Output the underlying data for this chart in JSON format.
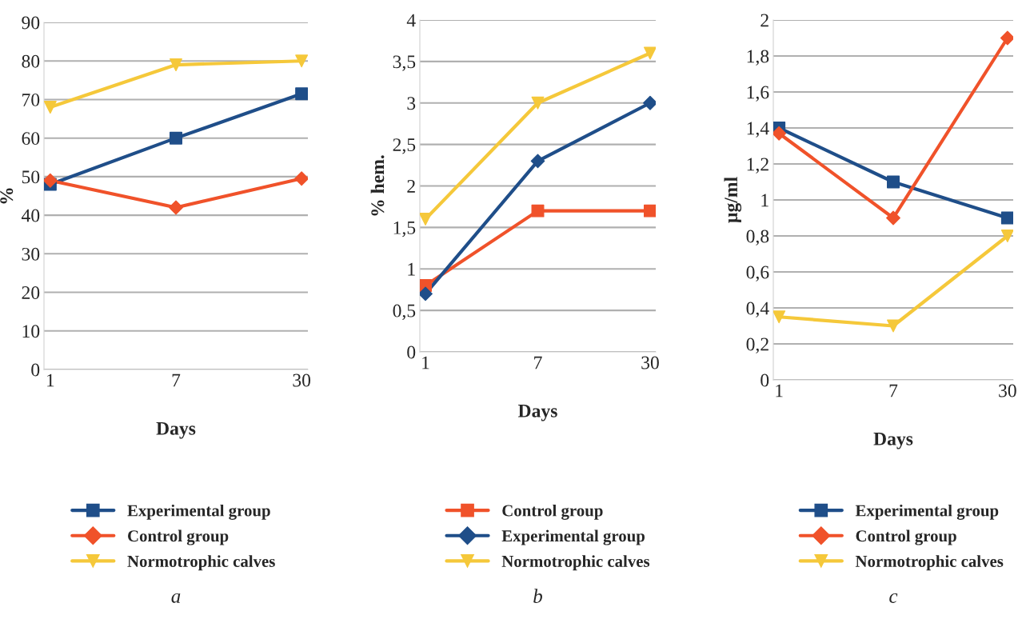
{
  "chart_data": [
    {
      "type": "line",
      "categories": [
        "1",
        "7",
        "30"
      ],
      "xlabel": "Days",
      "ylabel": "%",
      "ylim": [
        0,
        90
      ],
      "yticks": [
        0,
        10,
        20,
        30,
        40,
        50,
        60,
        70,
        80,
        90
      ],
      "grid": "y",
      "legend": "bottom",
      "annotations": [
        "a"
      ],
      "series": [
        {
          "name": "Experimental group",
          "color": "#1f4e89",
          "marker": "square",
          "values": [
            48,
            60,
            71.5
          ]
        },
        {
          "name": "Control group",
          "color": "#f0522a",
          "marker": "diamond",
          "values": [
            49,
            42,
            49.5
          ]
        },
        {
          "name": "Normotrophic calves",
          "color": "#f5c83a",
          "marker": "triangle",
          "values": [
            68,
            79,
            80
          ]
        }
      ]
    },
    {
      "type": "line",
      "categories": [
        "1",
        "7",
        "30"
      ],
      "xlabel": "Days",
      "ylabel": "% hem.",
      "ylim": [
        0,
        4
      ],
      "yticks": [
        0,
        {
          "value": 0.5,
          "label": "0,5"
        },
        1,
        {
          "value": 1.5,
          "label": "1,5"
        },
        2,
        {
          "value": 2.5,
          "label": "2,5"
        },
        3,
        {
          "value": 3.5,
          "label": "3,5"
        },
        4
      ],
      "grid": "y",
      "legend": "bottom",
      "annotations": [
        "b"
      ],
      "series": [
        {
          "name": "Control group",
          "color": "#f0522a",
          "marker": "square",
          "values": [
            0.8,
            1.7,
            1.7
          ]
        },
        {
          "name": "Experimental group",
          "color": "#1f4e89",
          "marker": "diamond",
          "values": [
            0.7,
            2.3,
            3.0
          ]
        },
        {
          "name": "Normotrophic calves",
          "color": "#f5c83a",
          "marker": "triangle",
          "values": [
            1.6,
            3.0,
            3.6
          ]
        }
      ]
    },
    {
      "type": "line",
      "categories": [
        "1",
        "7",
        "30"
      ],
      "xlabel": "Days",
      "ylabel": "µg/ml",
      "ylim": [
        0,
        2
      ],
      "yticks": [
        0,
        {
          "value": 0.2,
          "label": "0,2"
        },
        {
          "value": 0.4,
          "label": "0,4"
        },
        {
          "value": 0.6,
          "label": "0,6"
        },
        {
          "value": 0.8,
          "label": "0,8"
        },
        1,
        {
          "value": 1.2,
          "label": "1,2"
        },
        {
          "value": 1.4,
          "label": "1,4"
        },
        {
          "value": 1.6,
          "label": "1,6"
        },
        {
          "value": 1.8,
          "label": "1,8"
        },
        2
      ],
      "grid": "y",
      "legend": "bottom",
      "annotations": [
        "c"
      ],
      "series": [
        {
          "name": "Experimental group",
          "color": "#1f4e89",
          "marker": "square",
          "values": [
            1.4,
            1.1,
            0.9
          ]
        },
        {
          "name": "Control group",
          "color": "#f0522a",
          "marker": "diamond",
          "values": [
            1.37,
            0.9,
            1.9
          ]
        },
        {
          "name": "Normotrophic calves",
          "color": "#f5c83a",
          "marker": "triangle",
          "values": [
            0.35,
            0.3,
            0.8
          ]
        }
      ]
    }
  ]
}
